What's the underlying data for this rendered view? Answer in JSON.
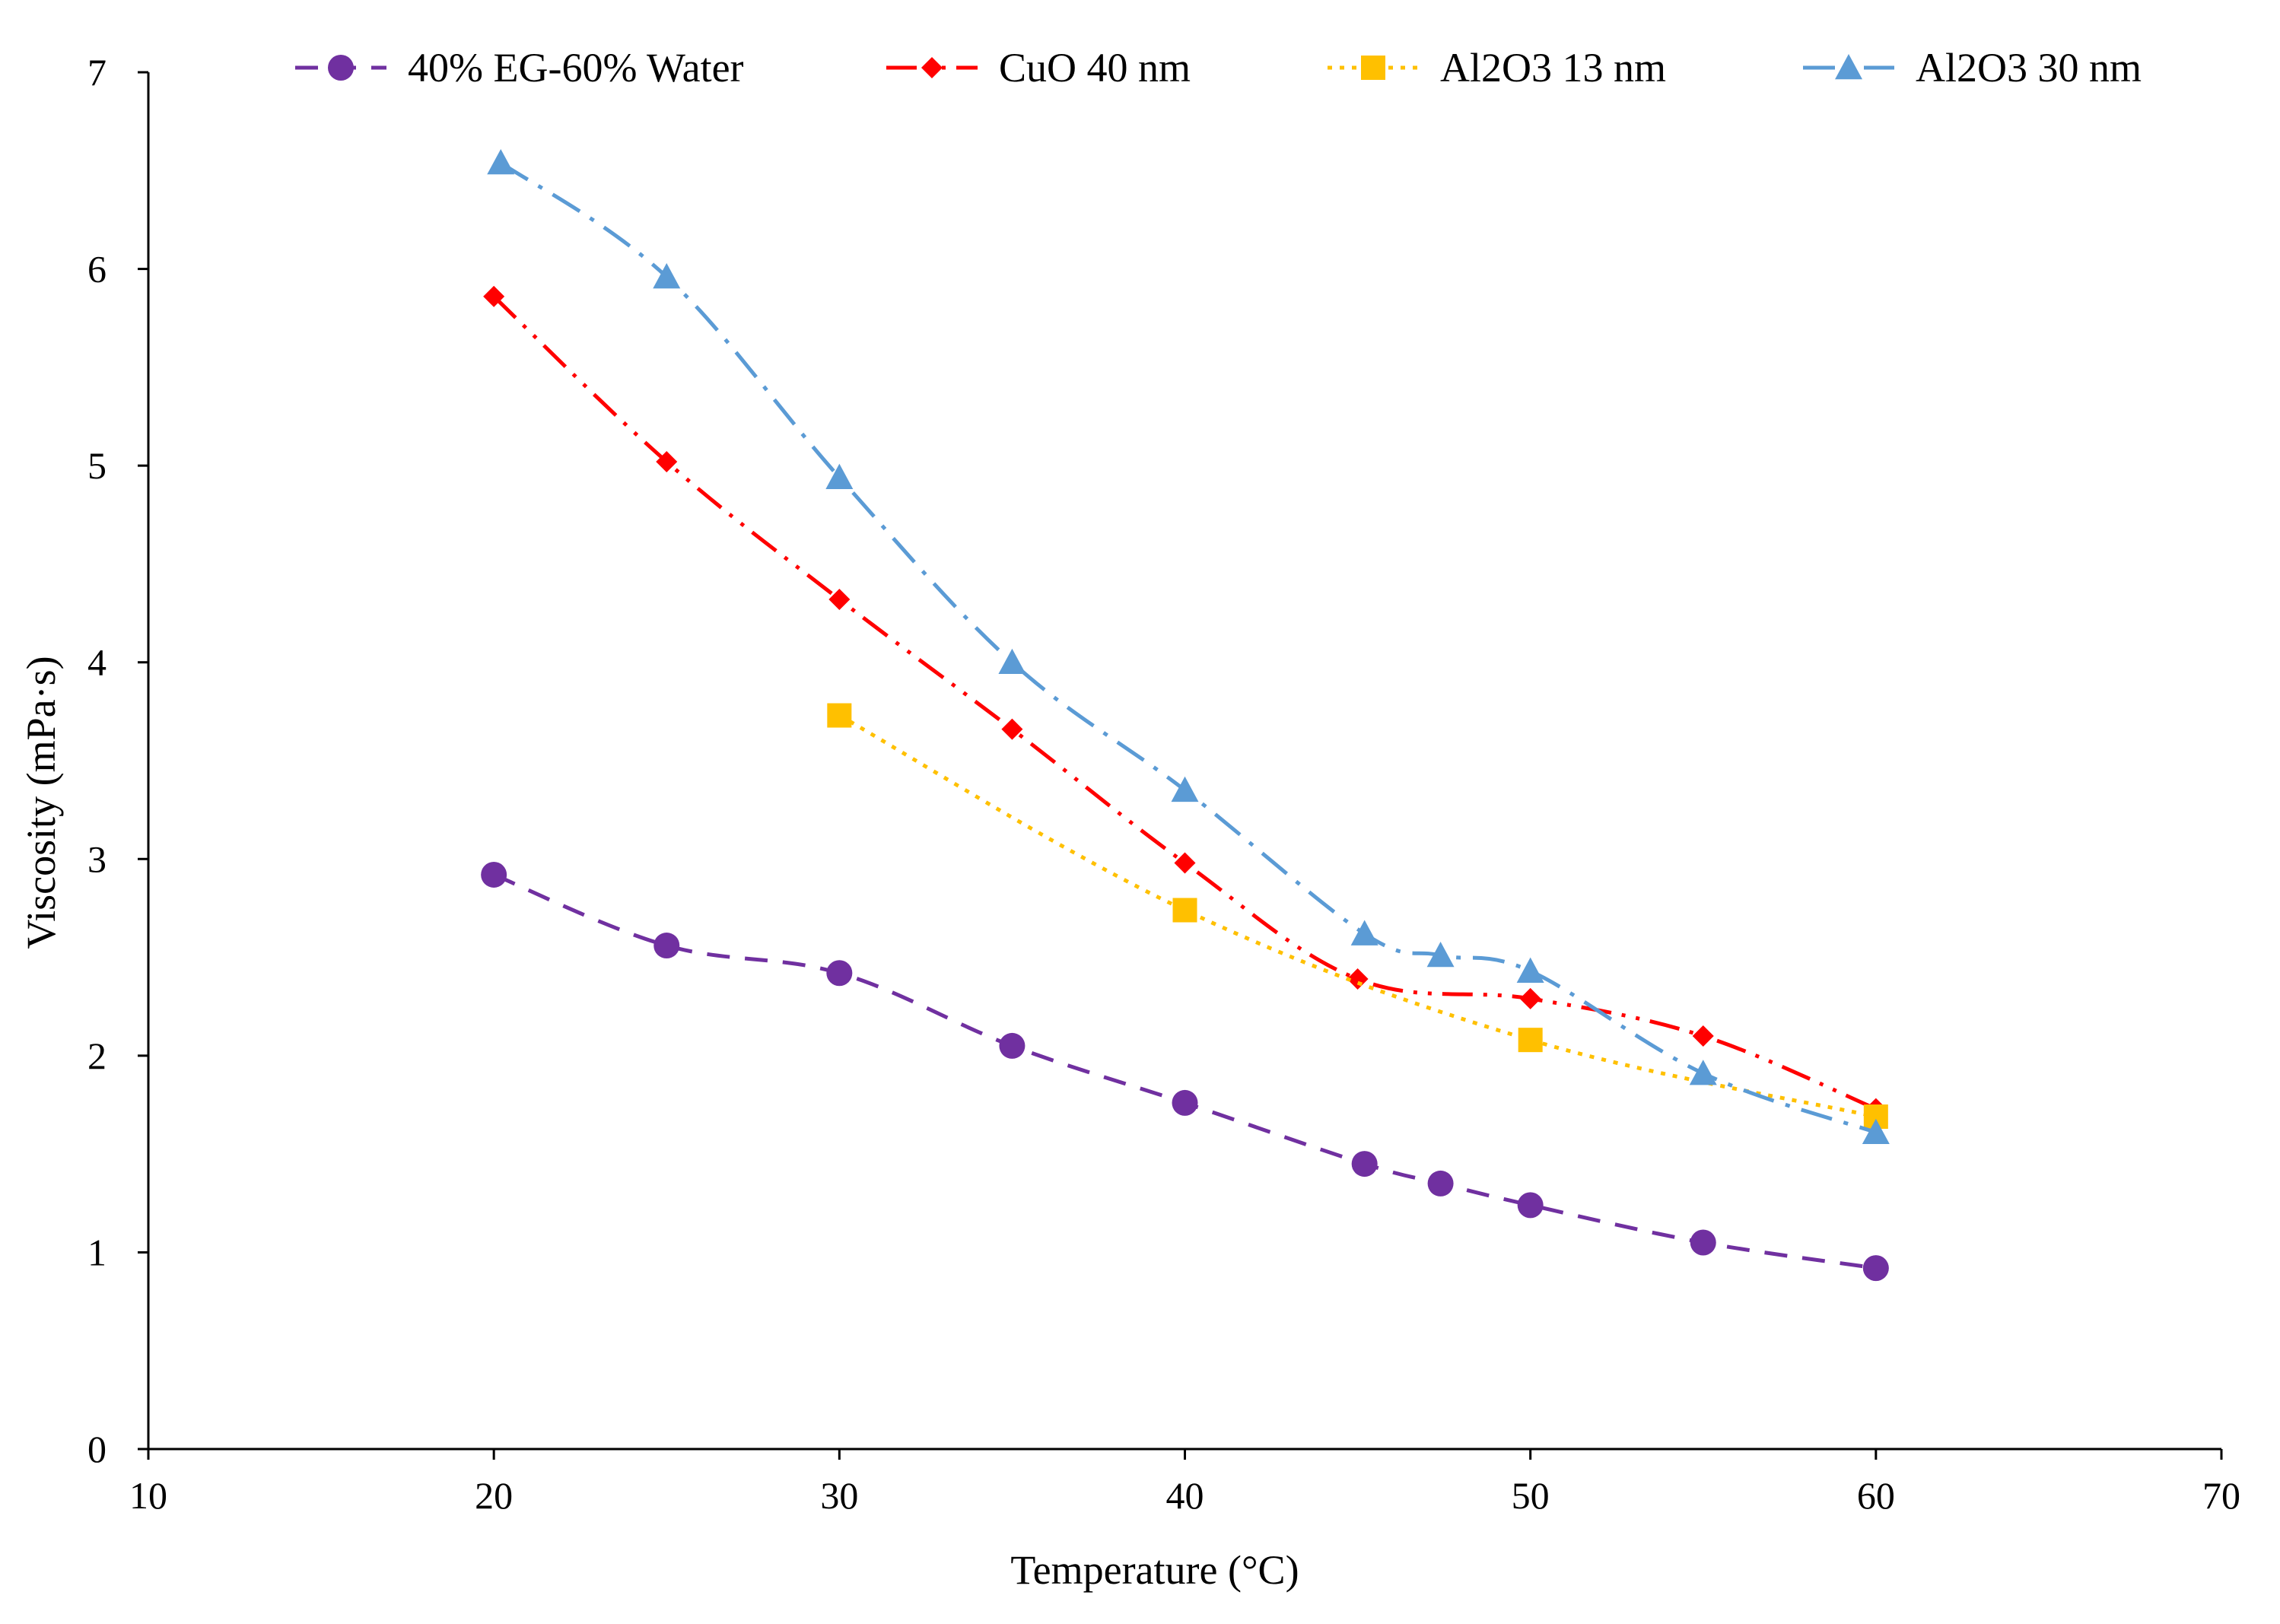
{
  "chart_data": {
    "type": "line",
    "title": "",
    "xlabel": "Temperature (°C)",
    "ylabel": "Viscosity (mPa·s)",
    "xlim": [
      10,
      70
    ],
    "ylim": [
      0,
      7
    ],
    "xticks": [
      10,
      20,
      30,
      40,
      50,
      60,
      70
    ],
    "yticks": [
      0,
      1,
      2,
      3,
      4,
      5,
      6,
      7
    ],
    "grid": false,
    "legend_position": "top",
    "series": [
      {
        "name": "40% EG-60% Water",
        "color": "#7030A0",
        "marker": "circle",
        "line_style": "dashed",
        "x": [
          20,
          25,
          30,
          35,
          40,
          45.2,
          47.4,
          50,
          55,
          60
        ],
        "y": [
          2.92,
          2.56,
          2.42,
          2.05,
          1.76,
          1.45,
          1.35,
          1.24,
          1.05,
          0.92
        ]
      },
      {
        "name": "CuO 40 nm",
        "color": "#FF0000",
        "marker": "diamond",
        "line_style": "dash-dot-dot",
        "x": [
          20,
          25,
          30,
          35,
          40,
          45,
          50,
          55,
          60
        ],
        "y": [
          5.86,
          5.02,
          4.32,
          3.66,
          2.98,
          2.39,
          2.29,
          2.1,
          1.73
        ]
      },
      {
        "name": "Al2O3 13 nm",
        "color": "#FFC000",
        "marker": "square",
        "line_style": "dotted",
        "x": [
          30,
          40,
          50,
          60
        ],
        "y": [
          3.73,
          2.74,
          2.08,
          1.69
        ]
      },
      {
        "name": "Al2O3 30 nm",
        "color": "#5B9BD5",
        "marker": "triangle",
        "line_style": "dash-dot",
        "x": [
          20.2,
          25,
          30,
          35,
          40,
          45.2,
          47.4,
          50,
          55,
          60
        ],
        "y": [
          6.54,
          5.96,
          4.94,
          4.0,
          3.35,
          2.62,
          2.51,
          2.43,
          1.91,
          1.61
        ]
      }
    ]
  }
}
